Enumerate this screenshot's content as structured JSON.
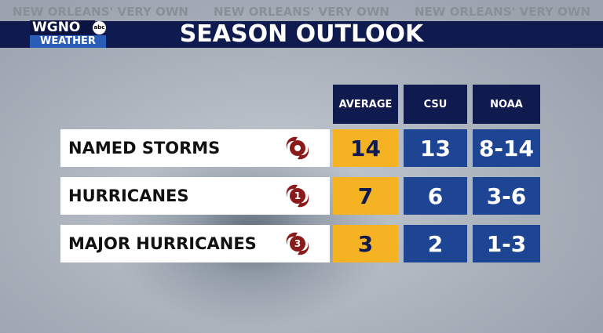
{
  "banner": {
    "tagline": [
      "NEW ORLEANS' VERY OWN",
      "NEW ORLEANS' VERY OWN",
      "NEW ORLEANS' VERY OWN"
    ]
  },
  "logo": {
    "station": "WGNO",
    "network": "abc",
    "brand": "WEATHER"
  },
  "title": "SEASON OUTLOOK",
  "table": {
    "headers": [
      "AVERAGE",
      "CSU",
      "NOAA"
    ],
    "rows": [
      {
        "label": "NAMED STORMS",
        "icon": null,
        "values": [
          14,
          13,
          "8-14"
        ]
      },
      {
        "label": "HURRICANES",
        "icon": "1",
        "values": [
          7,
          6,
          "3-6"
        ]
      },
      {
        "label": "MAJOR HURRICANES",
        "icon": "3",
        "values": [
          3,
          2,
          "1-3"
        ]
      }
    ]
  }
}
